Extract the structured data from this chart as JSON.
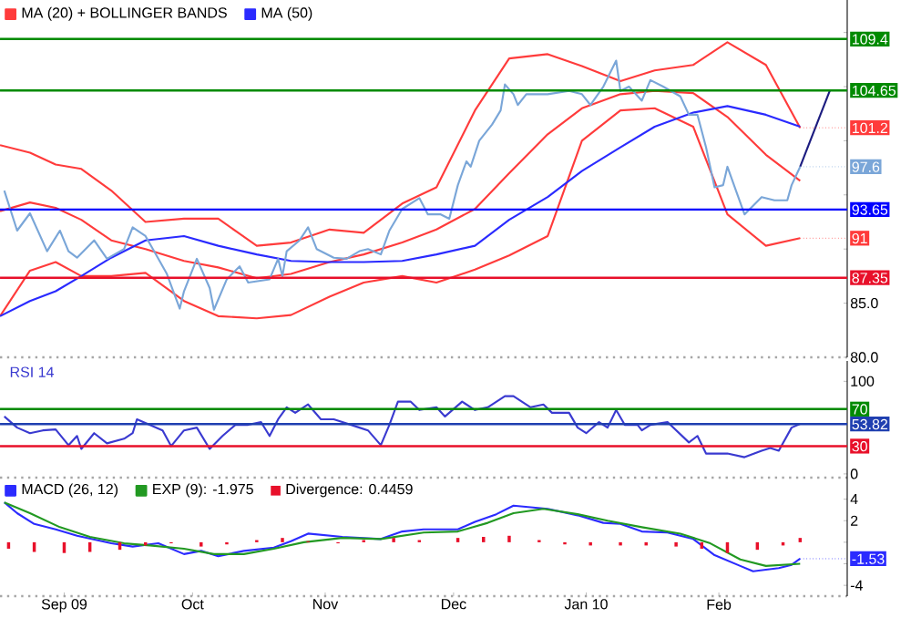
{
  "chart_data": [
    {
      "type": "line",
      "legend": "top left",
      "tick_labels": "y",
      "xlim": [
        "2009-08-17",
        "2010-03-03"
      ],
      "ylim": [
        80,
        113
      ],
      "yticks": [
        {
          "value": 110,
          "label": null
        },
        {
          "value": 105,
          "label": null
        },
        {
          "value": 100,
          "label": null
        },
        {
          "value": 95,
          "label": null
        },
        {
          "value": 90,
          "label": null
        },
        {
          "value": 85,
          "label": "85.0"
        },
        {
          "value": 80,
          "label": "80.0"
        }
      ],
      "x": [
        "2009-08-17",
        "2009-08-24",
        "2009-08-30",
        "2009-09-05",
        "2009-09-12",
        "2009-09-20",
        "2009-09-29",
        "2009-10-07",
        "2009-10-16",
        "2009-10-24",
        "2009-11-02",
        "2009-11-10",
        "2009-11-19",
        "2009-11-27",
        "2009-12-06",
        "2009-12-14",
        "2009-12-23",
        "2009-12-31",
        "2010-01-09",
        "2010-01-17",
        "2010-01-26",
        "2010-02-03",
        "2010-02-12",
        "2010-02-20"
      ],
      "series": [
        {
          "name": "MA (20) + BOLLINGER BANDS",
          "color": "#ff3b3b",
          "values": [
            93.5,
            94.3,
            93.8,
            92.7,
            90.8,
            90,
            88.9,
            88.3,
            87.3,
            87.7,
            88.8,
            89.5,
            90.6,
            91.8,
            93.7,
            97,
            100.6,
            103.0,
            104.3,
            104.6,
            104.4,
            102.2,
            98.7,
            96.3
          ]
        },
        {
          "color": "#ff3b3b",
          "values": [
            99.6,
            98.9,
            97.8,
            97.4,
            95.4,
            92.5,
            92.8,
            92.8,
            90.3,
            90.6,
            91.8,
            91.5,
            94.2,
            95.7,
            102.8,
            107.6,
            108,
            106.9,
            105.5,
            106.5,
            107,
            109.1,
            107,
            101.2
          ],
          "value_labels": [
            null,
            null,
            null,
            null,
            null,
            null,
            null,
            null,
            null,
            null,
            null,
            null,
            null,
            null,
            null,
            null,
            null,
            null,
            null,
            null,
            null,
            null,
            null,
            "101.2"
          ]
        },
        {
          "color": "#ff3b3b",
          "values": [
            83.8,
            88,
            88.8,
            87.5,
            87.5,
            87.8,
            85.2,
            83.8,
            83.6,
            83.9,
            85.6,
            86.9,
            87.5,
            86.9,
            88.1,
            89.4,
            91.2,
            100.0,
            102.8,
            103,
            101.3,
            93.2,
            90.3,
            91
          ],
          "value_labels": [
            null,
            null,
            null,
            null,
            null,
            null,
            null,
            null,
            null,
            null,
            null,
            null,
            null,
            null,
            null,
            null,
            null,
            null,
            null,
            null,
            null,
            null,
            null,
            "91"
          ]
        },
        {
          "name": "MA (50)",
          "color": "#2a2aff",
          "values": [
            83.8,
            85.2,
            86.1,
            87.5,
            89.2,
            90.8,
            91.2,
            90.3,
            89.5,
            88.9,
            88.8,
            88.8,
            88.9,
            89.5,
            90.3,
            92.7,
            94.8,
            97.2,
            99.4,
            101.3,
            102.6,
            103.2,
            102.4,
            101.3
          ]
        },
        {
          "color": "#7aa6d8",
          "x": [
            "2009-08-18",
            "2009-08-21",
            "2009-08-24",
            "2009-08-28",
            "2009-08-31",
            "2009-09-02",
            "2009-09-04",
            "2009-09-08",
            "2009-09-11",
            "2009-09-15",
            "2009-09-17",
            "2009-09-20",
            "2009-09-22",
            "2009-09-25",
            "2009-09-28",
            "2009-09-29",
            "2009-10-02",
            "2009-10-05",
            "2009-10-06",
            "2009-10-09",
            "2009-10-12",
            "2009-10-14",
            "2009-10-19",
            "2009-10-21",
            "2009-10-22",
            "2009-10-23",
            "2009-10-26",
            "2009-10-28",
            "2009-10-30",
            "2009-11-03",
            "2009-11-06",
            "2009-11-09",
            "2009-11-11",
            "2009-11-14",
            "2009-11-16",
            "2009-11-19",
            "2009-11-23",
            "2009-11-25",
            "2009-11-28",
            "2009-11-30",
            "2009-12-02",
            "2009-12-04",
            "2009-12-05",
            "2009-12-07",
            "2009-12-10",
            "2009-12-12",
            "2009-12-13",
            "2009-12-15",
            "2009-12-16",
            "2009-12-18",
            "2009-12-23",
            "2009-12-28",
            "2009-12-31",
            "2010-01-02",
            "2010-01-05",
            "2010-01-08",
            "2010-01-09",
            "2010-01-11",
            "2010-01-14",
            "2010-01-16",
            "2010-01-19",
            "2010-01-23",
            "2010-01-25",
            "2010-01-27",
            "2010-01-29",
            "2010-01-31",
            "2010-02-02",
            "2010-02-03",
            "2010-02-05",
            "2010-02-07",
            "2010-02-09",
            "2010-02-11",
            "2010-02-14",
            "2010-02-17",
            "2010-02-18",
            "2010-02-20"
          ],
          "values": [
            95.4,
            91.7,
            93.3,
            89.8,
            91.7,
            89.8,
            89.2,
            90.8,
            89.1,
            90.0,
            92.0,
            91.2,
            89.8,
            87.7,
            84.5,
            86.1,
            89.1,
            86.4,
            84.4,
            87.2,
            88.4,
            86.9,
            87.2,
            89.1,
            87.5,
            89.8,
            90.8,
            92.0,
            90.0,
            89.2,
            89.1,
            89.8,
            90.0,
            89.5,
            91.7,
            93.7,
            94.7,
            93.2,
            93.2,
            92.8,
            95.9,
            98.1,
            97.6,
            100.0,
            101.5,
            102.8,
            105.2,
            104.3,
            103.3,
            104.3,
            104.3,
            104.6,
            104.3,
            103.3,
            105.0,
            107.4,
            104.6,
            105.0,
            103.7,
            105.6,
            105.0,
            104.1,
            102.4,
            102.4,
            99.4,
            95.7,
            95.9,
            97.6,
            95.4,
            93.2,
            94.0,
            94.8,
            94.5,
            94.5,
            95.9,
            97.6
          ],
          "value_labels": [
            null,
            null,
            null,
            null,
            null,
            null,
            null,
            null,
            null,
            null,
            null,
            null,
            null,
            null,
            null,
            null,
            null,
            null,
            null,
            null,
            null,
            null,
            null,
            null,
            null,
            null,
            null,
            null,
            null,
            null,
            null,
            null,
            null,
            null,
            null,
            null,
            null,
            null,
            null,
            null,
            null,
            null,
            null,
            null,
            null,
            null,
            null,
            null,
            null,
            null,
            null,
            null,
            null,
            null,
            null,
            null,
            null,
            null,
            null,
            null,
            null,
            null,
            null,
            null,
            null,
            null,
            null,
            null,
            null,
            null,
            null,
            null,
            null,
            null,
            null,
            "97.6"
          ]
        },
        {
          "color": "#1c1c80",
          "x": [
            "2010-02-20",
            "2010-02-27"
          ],
          "values": [
            97.6,
            104.7
          ]
        }
      ],
      "ref_lines": [
        {
          "axis": "y",
          "value": 109.4,
          "label": "109.4",
          "color": "#008a00"
        },
        {
          "axis": "y",
          "value": 104.65,
          "label": "104.65",
          "color": "#008a00"
        },
        {
          "axis": "y",
          "value": 93.65,
          "label": "93.65",
          "color": "#0000ff"
        },
        {
          "axis": "y",
          "value": 87.35,
          "label": "87.35",
          "color": "#e8102a"
        }
      ]
    },
    {
      "type": "line",
      "legend": "top left",
      "tick_labels": "y",
      "xlim": [
        "2009-08-17",
        "2010-03-03"
      ],
      "ylim": [
        -4,
        122
      ],
      "yticks": [
        100,
        0
      ],
      "series": [
        {
          "name": "RSI 14",
          "color": "#3a3ad0",
          "x": [
            "2009-08-18",
            "2009-08-21",
            "2009-08-24",
            "2009-08-27",
            "2009-08-30",
            "2009-09-02",
            "2009-09-04",
            "2009-09-05",
            "2009-09-08",
            "2009-09-11",
            "2009-09-15",
            "2009-09-17",
            "2009-09-18",
            "2009-09-21",
            "2009-09-24",
            "2009-09-26",
            "2009-09-29",
            "2009-10-02",
            "2009-10-05",
            "2009-10-08",
            "2009-10-11",
            "2009-10-14",
            "2009-10-17",
            "2009-10-19",
            "2009-10-21",
            "2009-10-23",
            "2009-10-25",
            "2009-10-28",
            "2009-10-31",
            "2009-11-03",
            "2009-11-05",
            "2009-11-09",
            "2009-11-11",
            "2009-11-14",
            "2009-11-16",
            "2009-11-18",
            "2009-11-21",
            "2009-11-23",
            "2009-11-27",
            "2009-11-29",
            "2009-12-03",
            "2009-12-06",
            "2009-12-09",
            "2009-12-13",
            "2009-12-15",
            "2009-12-19",
            "2009-12-22",
            "2009-12-24",
            "2009-12-28",
            "2009-12-30",
            "2010-01-01",
            "2010-01-04",
            "2010-01-06",
            "2010-01-08",
            "2010-01-10",
            "2010-01-13",
            "2010-01-14",
            "2010-01-16",
            "2010-01-20",
            "2010-01-25",
            "2010-01-27",
            "2010-01-29",
            "2010-02-03",
            "2010-02-07",
            "2010-02-11",
            "2010-02-13",
            "2010-02-15",
            "2010-02-18",
            "2010-02-20"
          ],
          "values": [
            62,
            50,
            44,
            47,
            48,
            31,
            41,
            27,
            44,
            33,
            38,
            44,
            59,
            53,
            47,
            30,
            47,
            50,
            27,
            41,
            53,
            53,
            56,
            41,
            59,
            72,
            66,
            75,
            59,
            59,
            56,
            50,
            47,
            31,
            53,
            78,
            78,
            69,
            72,
            62,
            78,
            69,
            72,
            84,
            84,
            72,
            75,
            66,
            66,
            50,
            44,
            56,
            50,
            69,
            53,
            53,
            47,
            53,
            56,
            34,
            41,
            22,
            22,
            18,
            25,
            28,
            25,
            50,
            54
          ]
        }
      ],
      "ref_lines": [
        {
          "axis": "y",
          "value": 70,
          "label": "70",
          "color": "#008a00"
        },
        {
          "axis": "y",
          "value": 53.82,
          "label": "53.82",
          "color": "#1f3fb0"
        },
        {
          "axis": "y",
          "value": 30,
          "label": "30",
          "color": "#e8102a"
        }
      ]
    },
    {
      "type": "line",
      "legend": "top left",
      "xlim": [
        "2009-08-17",
        "2010-03-03"
      ],
      "ylim": [
        -5,
        6
      ],
      "xticks": [
        {
          "value": "2009-09-01",
          "label": "Sep 09"
        },
        {
          "value": "2009-10-01",
          "label": "Oct"
        },
        {
          "value": "2009-11-01",
          "label": "Nov"
        },
        {
          "value": "2009-12-01",
          "label": "Dec"
        },
        {
          "value": "2010-01-01",
          "label": "Jan 10"
        },
        {
          "value": "2010-02-01",
          "label": "Feb"
        }
      ],
      "yticks": [
        4,
        2,
        {
          "value": 0,
          "label": null
        },
        {
          "value": -2,
          "label": null
        },
        -4
      ],
      "series": [
        {
          "name": "MACD (26, 12)",
          "color": "#2b2bff",
          "x": [
            "2009-08-18",
            "2009-08-21",
            "2009-08-25",
            "2009-08-30",
            "2009-09-04",
            "2009-09-12",
            "2009-09-17",
            "2009-09-23",
            "2009-09-29",
            "2009-10-03",
            "2009-10-07",
            "2009-10-13",
            "2009-10-20",
            "2009-10-24",
            "2009-10-28",
            "2009-11-05",
            "2009-11-14",
            "2009-11-19",
            "2009-11-24",
            "2009-12-02",
            "2009-12-06",
            "2009-12-11",
            "2009-12-15",
            "2009-12-23",
            "2009-12-30",
            "2010-01-05",
            "2010-01-09",
            "2010-01-14",
            "2010-01-20",
            "2010-01-26",
            "2010-01-31",
            "2010-02-06",
            "2010-02-09",
            "2010-02-15",
            "2010-02-18",
            "2010-02-20"
          ],
          "values": [
            3.7,
            2.7,
            1.7,
            1.2,
            0.6,
            -0.1,
            -0.4,
            -0.1,
            -1.1,
            -0.8,
            -1.3,
            -0.8,
            -0.5,
            0.1,
            0.8,
            0.5,
            0.3,
            1.0,
            1.2,
            1.2,
            1.9,
            2.6,
            3.4,
            3.1,
            2.5,
            1.8,
            1.7,
            1.0,
            0.9,
            0.3,
            -1.2,
            -2.2,
            -2.7,
            -2.4,
            -2.1,
            -1.53
          ],
          "value_labels": [
            null,
            null,
            null,
            null,
            null,
            null,
            null,
            null,
            null,
            null,
            null,
            null,
            null,
            null,
            null,
            null,
            null,
            null,
            null,
            null,
            null,
            null,
            null,
            null,
            null,
            null,
            null,
            null,
            null,
            null,
            null,
            null,
            null,
            null,
            null,
            "-1.53"
          ]
        },
        {
          "name": "EXP (9): -1.975",
          "color": "#229922",
          "x": [
            "2009-08-18",
            "2009-08-24",
            "2009-08-31",
            "2009-09-07",
            "2009-09-15",
            "2009-09-21",
            "2009-09-29",
            "2009-10-06",
            "2009-10-13",
            "2009-10-20",
            "2009-10-27",
            "2009-11-05",
            "2009-11-14",
            "2009-11-24",
            "2009-12-02",
            "2009-12-09",
            "2009-12-15",
            "2009-12-22",
            "2009-12-30",
            "2010-01-06",
            "2010-01-14",
            "2010-01-23",
            "2010-01-30",
            "2010-02-06",
            "2010-02-12",
            "2010-02-20"
          ],
          "values": [
            3.7,
            2.7,
            1.4,
            0.5,
            -0.1,
            -0.3,
            -0.6,
            -1.1,
            -1.1,
            -0.6,
            0,
            0.4,
            0.3,
            0.9,
            1.0,
            1.8,
            2.7,
            3.1,
            2.6,
            2.0,
            1.4,
            0.8,
            -0.1,
            -1.6,
            -2.2,
            -2.0
          ]
        },
        {
          "name": "Divergence: 0.4459",
          "type": "bar",
          "color": "#e8102a",
          "x": [
            "2009-08-19",
            "2009-08-25",
            "2009-09-01",
            "2009-09-07",
            "2009-09-14",
            "2009-09-20",
            "2009-09-26",
            "2009-10-03",
            "2009-10-09",
            "2009-10-16",
            "2009-10-22",
            "2009-10-28",
            "2009-11-04",
            "2009-11-10",
            "2009-11-17",
            "2009-11-23",
            "2009-12-02",
            "2009-12-08",
            "2009-12-14",
            "2009-12-21",
            "2009-12-27",
            "2010-01-02",
            "2010-01-09",
            "2010-01-15",
            "2010-01-22",
            "2010-01-28",
            "2010-02-03",
            "2010-02-10",
            "2010-02-16",
            "2010-02-20"
          ],
          "values": [
            -0.6,
            -0.9,
            -1.0,
            -0.9,
            -0.7,
            -0.3,
            -0.1,
            -0.4,
            -0.2,
            0.2,
            0.4,
            0.1,
            -0.1,
            0.2,
            0.4,
            0.2,
            0.4,
            0.5,
            0.6,
            0.2,
            -0.2,
            -0.3,
            -0.3,
            -0.3,
            -0.4,
            -0.6,
            -1.0,
            -0.7,
            -0.3,
            0.4
          ]
        }
      ]
    }
  ]
}
